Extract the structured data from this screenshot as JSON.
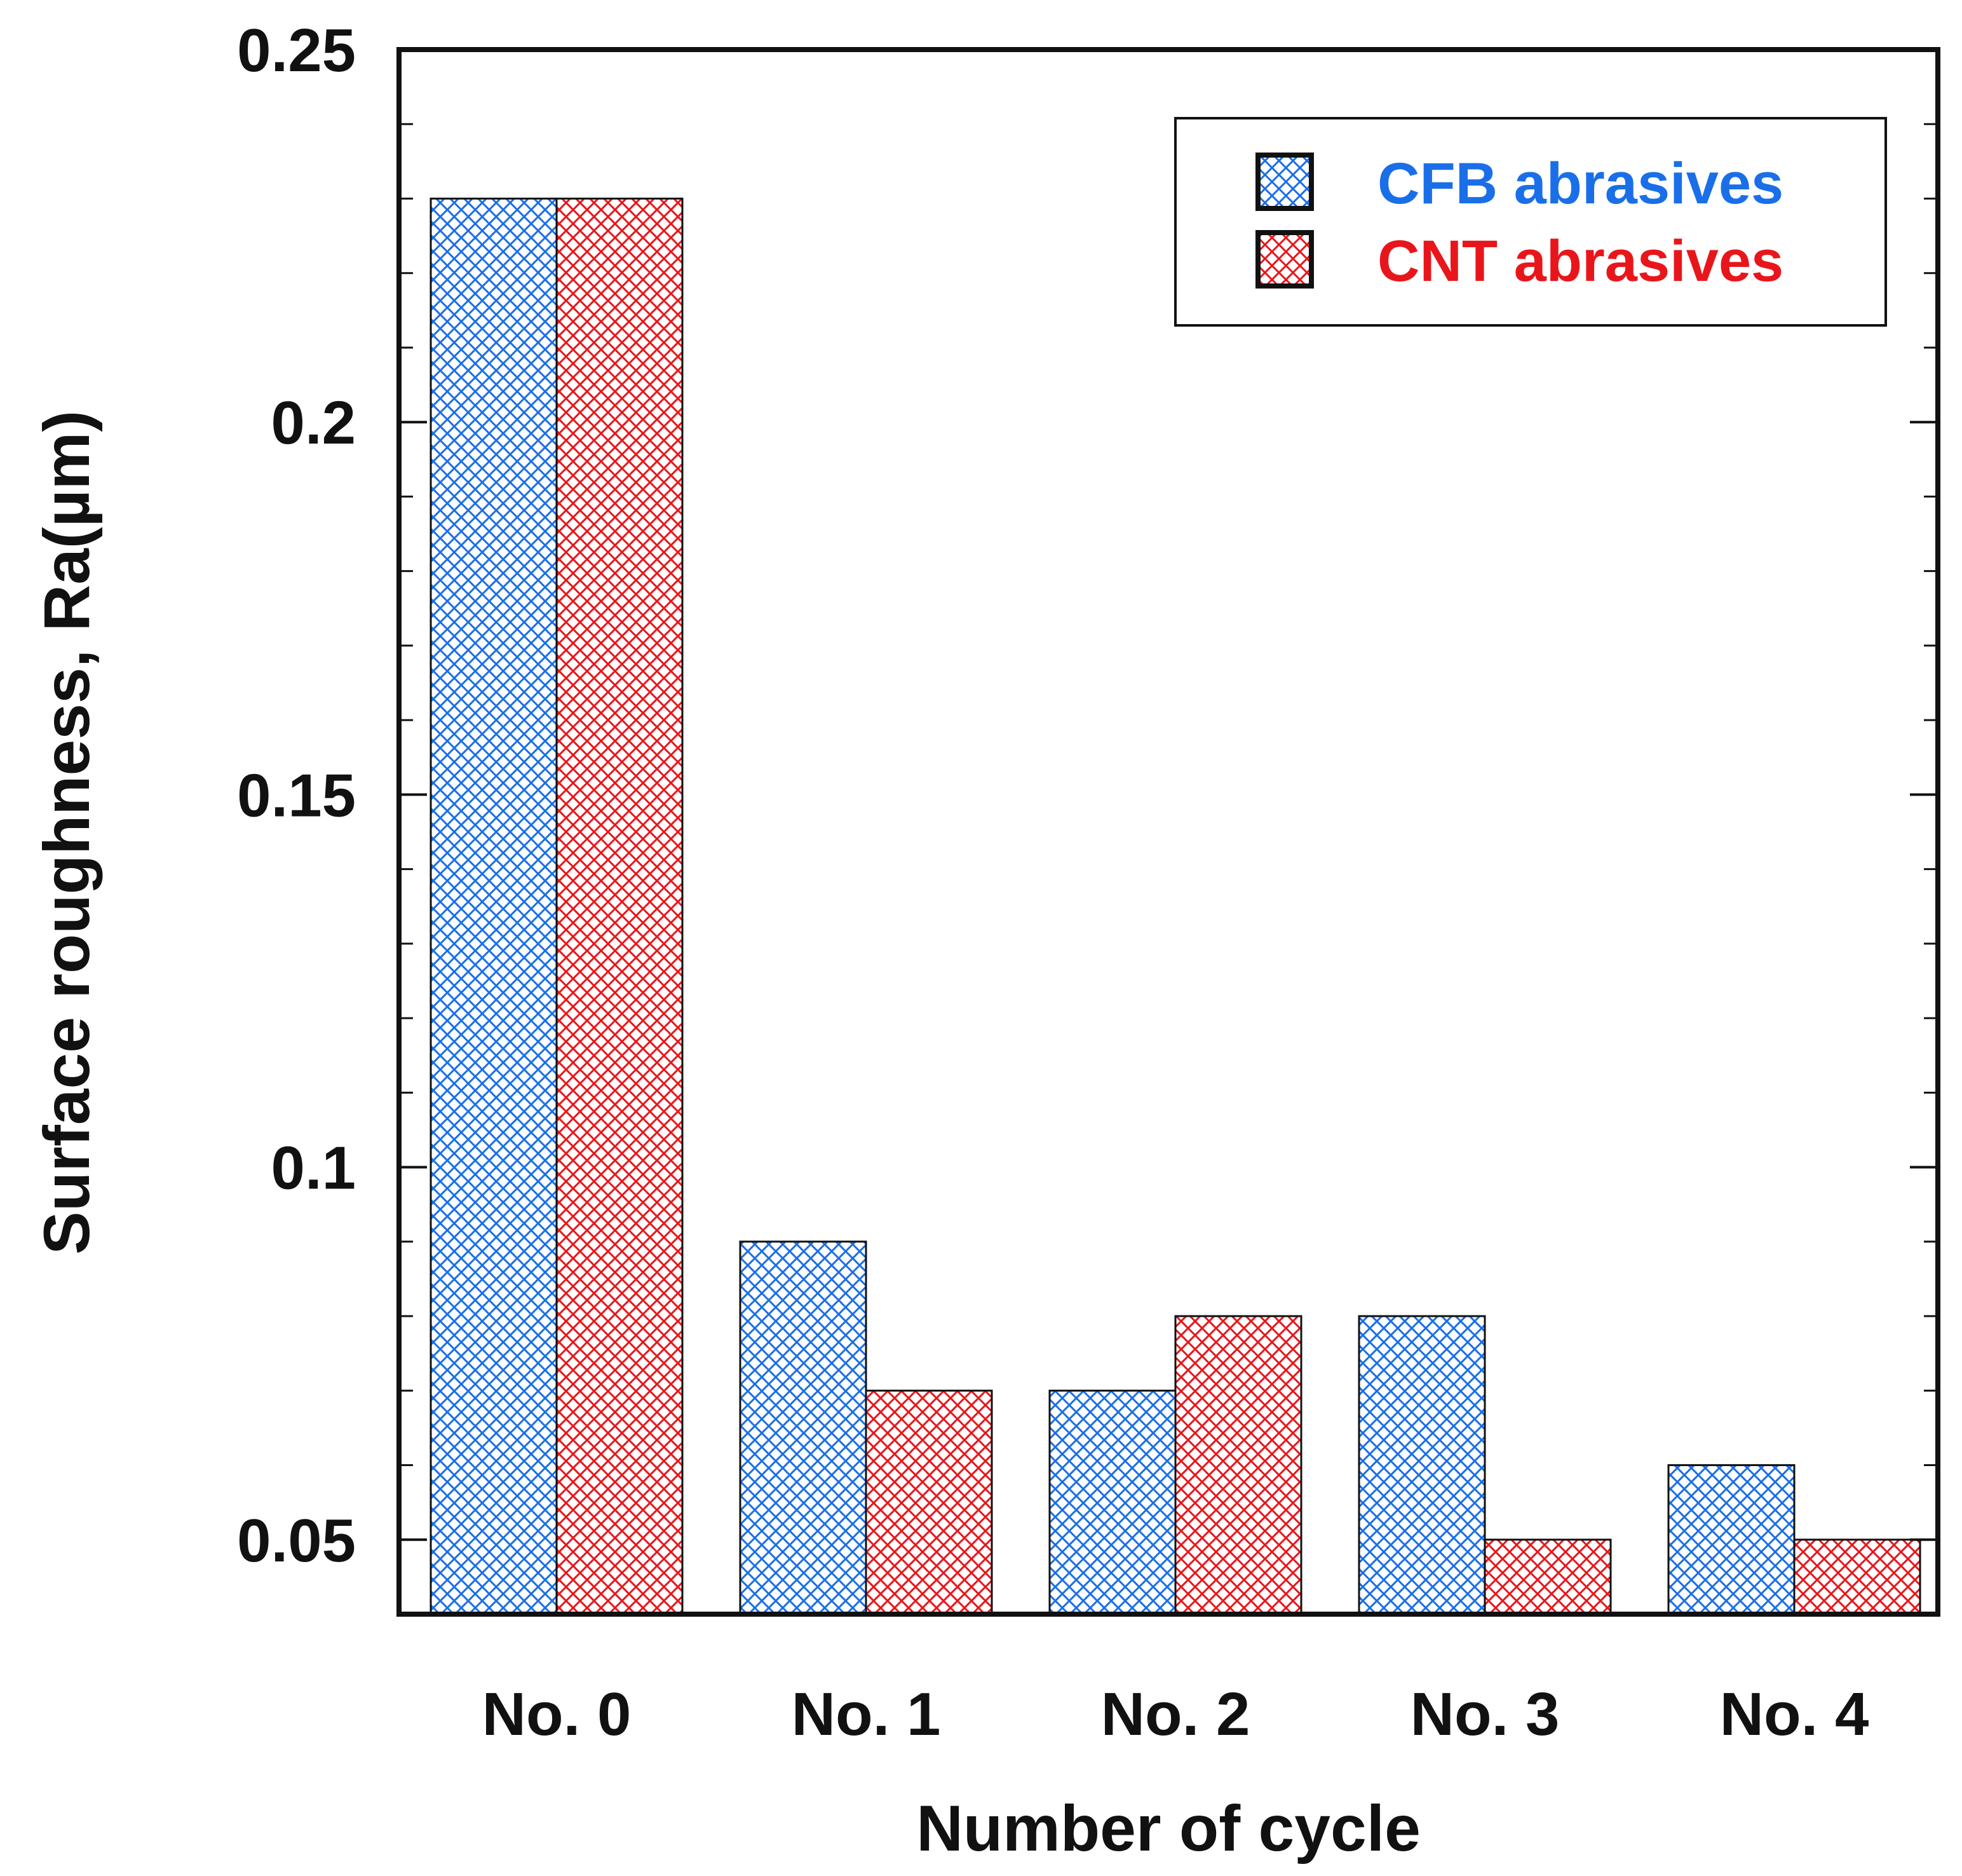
{
  "chart_data": {
    "type": "bar",
    "title": "",
    "xlabel": "Number of cycle",
    "ylabel": "Surface roughness, Ra(µm)",
    "categories": [
      "No. 0",
      "No. 1",
      "No. 2",
      "No. 3",
      "No. 4"
    ],
    "series": [
      {
        "name": "CFB abrasives",
        "color": "#1a6fe8",
        "values": [
          0.23,
          0.09,
          0.07,
          0.08,
          0.06
        ]
      },
      {
        "name": "CNT abrasives",
        "color": "#e8161b",
        "values": [
          0.23,
          0.07,
          0.08,
          0.05,
          0.05
        ]
      }
    ],
    "ylim": [
      0.04,
      0.25
    ],
    "yticks": [
      {
        "value": 0.05,
        "label": "0.05"
      },
      {
        "value": 0.1,
        "label": "0.1"
      },
      {
        "value": 0.15,
        "label": "0.15"
      },
      {
        "value": 0.2,
        "label": "0.2"
      },
      {
        "value": 0.25,
        "label": "0.25"
      }
    ],
    "minor_tick_step": 0.01,
    "legend_position": "top-right",
    "grid": false,
    "fill_pattern": "crosshatch"
  }
}
